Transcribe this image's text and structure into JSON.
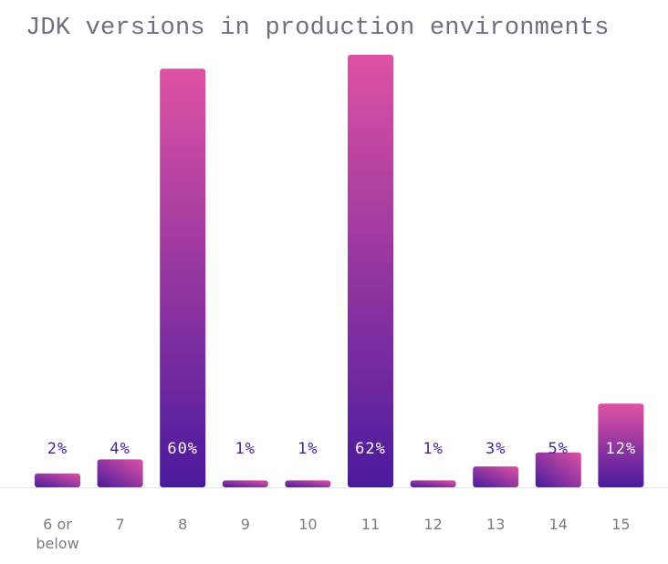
{
  "chart_data": {
    "type": "bar",
    "title": "JDK versions in production environments",
    "xlabel": "",
    "ylabel": "",
    "categories": [
      "6 or below",
      "7",
      "8",
      "9",
      "10",
      "11",
      "12",
      "13",
      "14",
      "15"
    ],
    "tick_lines": [
      [
        "6 or",
        "below"
      ],
      [
        "7"
      ],
      [
        "8"
      ],
      [
        "9"
      ],
      [
        "10"
      ],
      [
        "11"
      ],
      [
        "12"
      ],
      [
        "13"
      ],
      [
        "14"
      ],
      [
        "15"
      ]
    ],
    "values": [
      2,
      4,
      60,
      1,
      1,
      62,
      1,
      3,
      5,
      12
    ],
    "data_labels": [
      "2%",
      "4%",
      "60%",
      "1%",
      "1%",
      "62%",
      "1%",
      "3%",
      "5%",
      "12%"
    ],
    "ylim": [
      0,
      62
    ],
    "grid": false,
    "legend": "none",
    "colors": {
      "bar_top": "#de52a3",
      "bar_bottom": "#4a1a9e",
      "label_dark": "#4b2399",
      "label_light": "#ffffff",
      "axis": "#e6e6ec"
    }
  }
}
